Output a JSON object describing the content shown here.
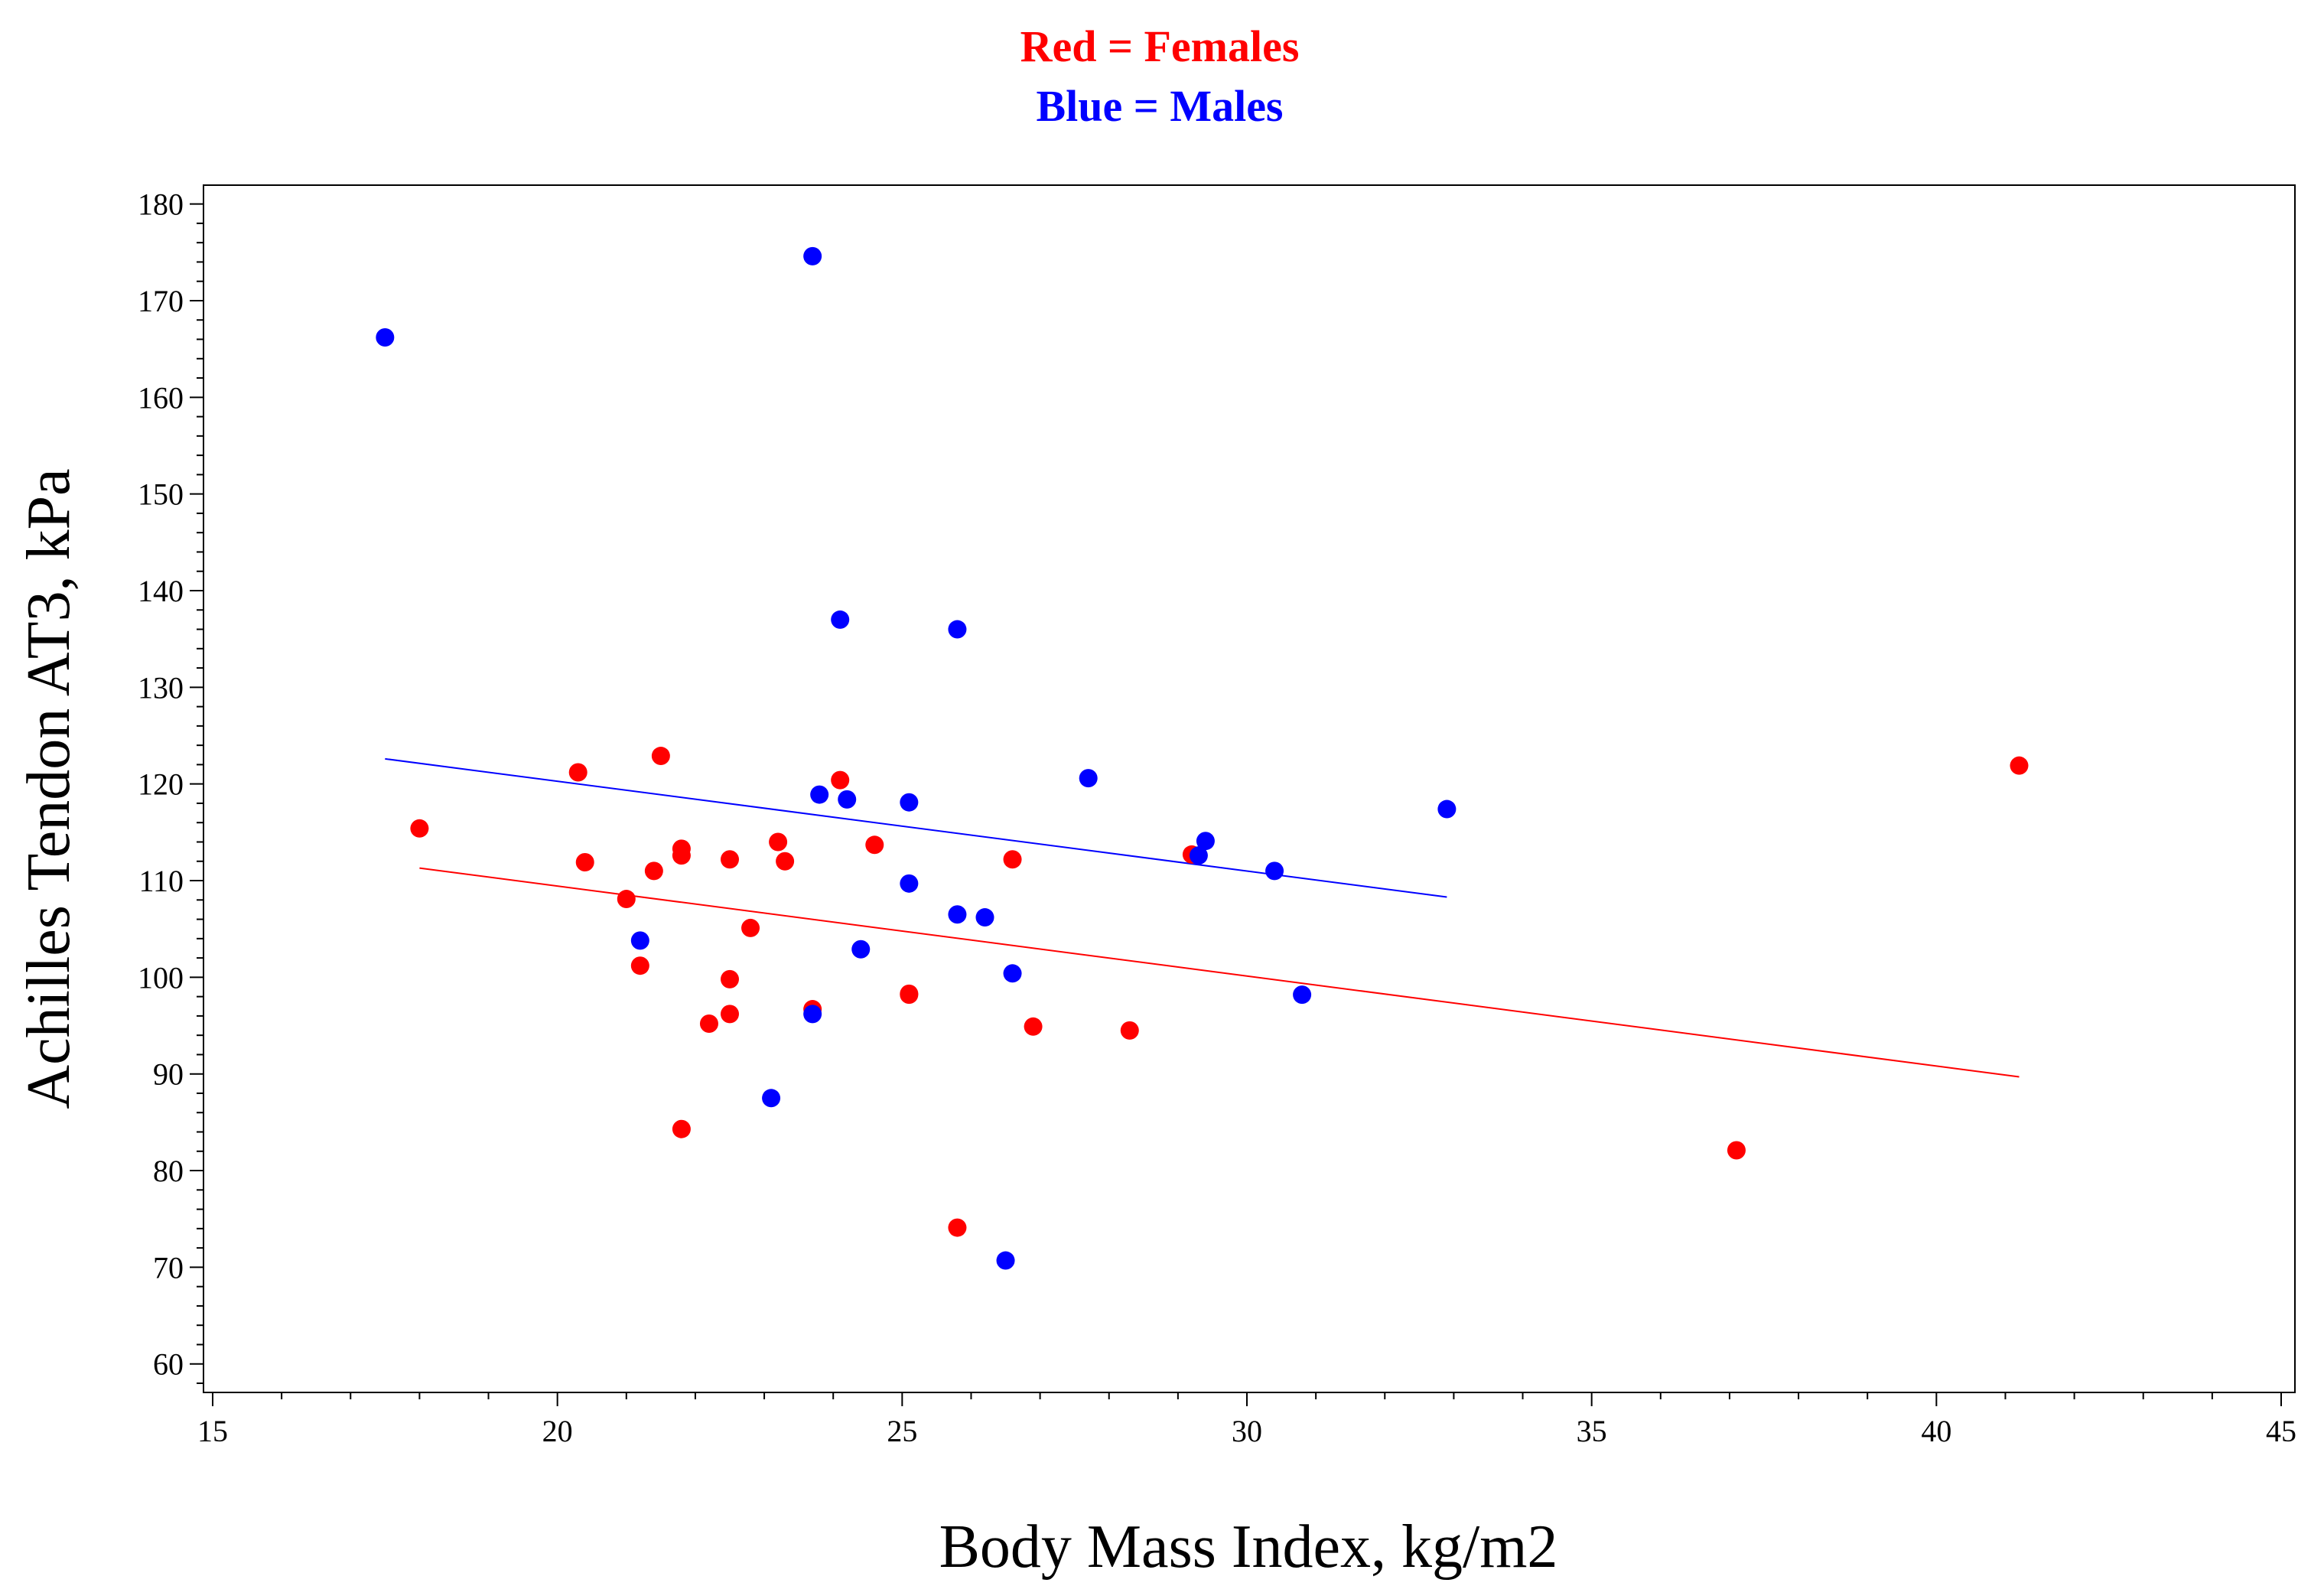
{
  "chart_data": {
    "type": "scatter",
    "title_lines": [
      {
        "text": "Red = Females",
        "color": "#ff0000"
      },
      {
        "text": "Blue = Males",
        "color": "#0000ff"
      }
    ],
    "xlabel": "Body Mass Index, kg/m2",
    "ylabel": "Achilles Tendon AT3, kPa",
    "xlim": [
      15,
      45
    ],
    "ylim": [
      58,
      181
    ],
    "xticks": [
      15,
      20,
      25,
      30,
      35,
      40,
      45
    ],
    "yticks": [
      60,
      70,
      80,
      90,
      100,
      110,
      120,
      130,
      140,
      150,
      160,
      170,
      180
    ],
    "x_minor_step": 1,
    "y_minor_step": 2,
    "grid": false,
    "series": [
      {
        "name": "Females",
        "color": "#ff0000",
        "points": [
          [
            18.0,
            115.4
          ],
          [
            20.3,
            121.2
          ],
          [
            20.4,
            111.9
          ],
          [
            21.0,
            108.1
          ],
          [
            21.2,
            101.2
          ],
          [
            21.4,
            111.0
          ],
          [
            21.5,
            122.9
          ],
          [
            21.8,
            113.3
          ],
          [
            21.8,
            112.6
          ],
          [
            21.8,
            84.3
          ],
          [
            22.2,
            95.2
          ],
          [
            22.5,
            112.2
          ],
          [
            22.5,
            99.8
          ],
          [
            22.5,
            96.2
          ],
          [
            22.8,
            105.1
          ],
          [
            23.2,
            114.0
          ],
          [
            23.3,
            112.0
          ],
          [
            23.7,
            96.7
          ],
          [
            24.1,
            120.4
          ],
          [
            24.6,
            113.7
          ],
          [
            25.1,
            98.3
          ],
          [
            25.1,
            98.2
          ],
          [
            25.8,
            74.1
          ],
          [
            26.6,
            112.2
          ],
          [
            26.9,
            94.9
          ],
          [
            28.3,
            94.5
          ],
          [
            29.2,
            112.7
          ],
          [
            37.1,
            82.1
          ],
          [
            41.2,
            121.9
          ]
        ],
        "trend": {
          "x": [
            18.0,
            41.2
          ],
          "y": [
            111.3,
            89.7
          ]
        }
      },
      {
        "name": "Males",
        "color": "#0000ff",
        "points": [
          [
            17.5,
            166.2
          ],
          [
            21.2,
            103.8
          ],
          [
            23.1,
            87.5
          ],
          [
            23.7,
            174.6
          ],
          [
            23.7,
            96.2
          ],
          [
            23.8,
            118.9
          ],
          [
            24.1,
            137.0
          ],
          [
            24.2,
            118.4
          ],
          [
            24.4,
            102.9
          ],
          [
            25.1,
            118.1
          ],
          [
            25.1,
            109.7
          ],
          [
            25.8,
            136.0
          ],
          [
            25.8,
            106.5
          ],
          [
            26.2,
            106.2
          ],
          [
            26.5,
            70.7
          ],
          [
            26.6,
            100.4
          ],
          [
            27.7,
            120.6
          ],
          [
            29.3,
            112.6
          ],
          [
            29.4,
            114.1
          ],
          [
            30.4,
            111.0
          ],
          [
            30.8,
            98.2
          ],
          [
            32.9,
            117.4
          ]
        ],
        "trend": {
          "x": [
            17.5,
            32.9
          ],
          "y": [
            122.6,
            108.3
          ]
        }
      }
    ]
  }
}
